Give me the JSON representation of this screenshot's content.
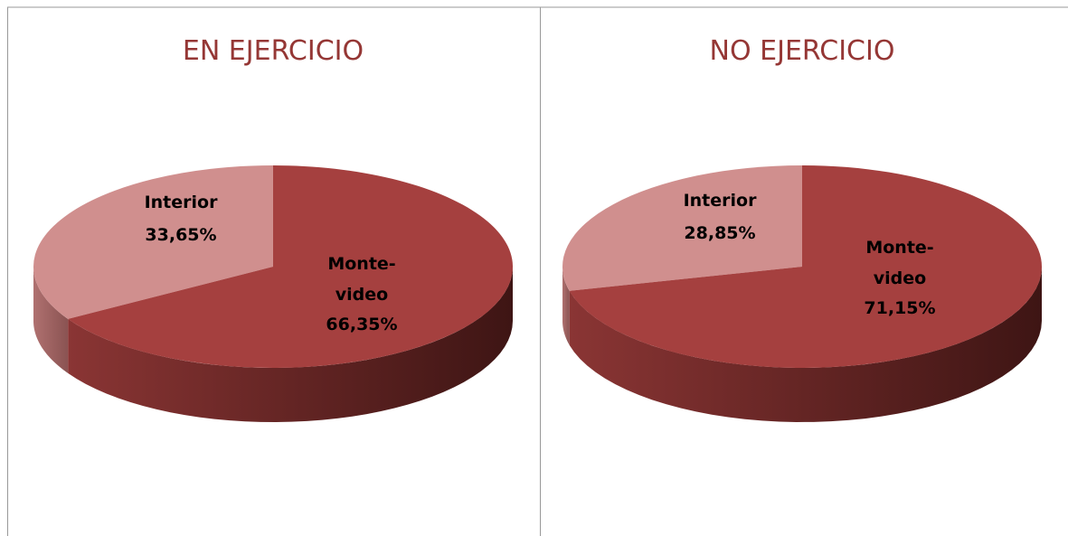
{
  "chart_data": [
    {
      "type": "pie",
      "title": "EN EJERCICIO",
      "categories": [
        "Interior",
        "Monte-video"
      ],
      "values": [
        33.65,
        66.35
      ],
      "value_labels": [
        "33,65%",
        "66,35%"
      ],
      "colors": [
        "#d08f8e",
        "#a5403f"
      ]
    },
    {
      "type": "pie",
      "title": "NO EJERCICIO",
      "categories": [
        "Interior",
        "Monte-video"
      ],
      "values": [
        28.85,
        71.15
      ],
      "value_labels": [
        "28,85%",
        "71,15%"
      ],
      "colors": [
        "#d08f8e",
        "#a5403f"
      ]
    }
  ]
}
